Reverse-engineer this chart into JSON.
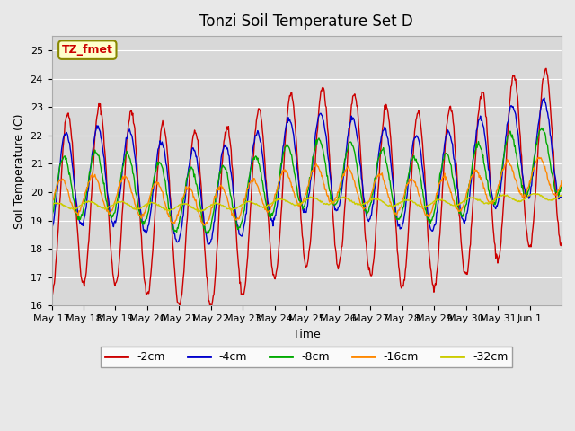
{
  "title": "Tonzi Soil Temperature Set D",
  "xlabel": "Time",
  "ylabel": "Soil Temperature (C)",
  "ylim": [
    16.0,
    25.5
  ],
  "yticks": [
    16.0,
    17.0,
    18.0,
    19.0,
    20.0,
    21.0,
    22.0,
    23.0,
    24.0,
    25.0
  ],
  "series_colors": [
    "#cc0000",
    "#0000cc",
    "#00aa00",
    "#ff8800",
    "#cccc00"
  ],
  "series_labels": [
    "-2cm",
    "-4cm",
    "-8cm",
    "-16cm",
    "-32cm"
  ],
  "legend_label": "TZ_fmet",
  "legend_box_color": "#ffffcc",
  "legend_box_edge": "#888800",
  "legend_text_color": "#cc0000",
  "bg_color": "#e8e8e8",
  "plot_bg_color": "#d8d8d8",
  "n_days": 16,
  "points_per_day": 48,
  "tick_dates": [
    "May 17",
    "May 18",
    "May 19",
    "May 20",
    "May 21",
    "May 22",
    "May 23",
    "May 24",
    "May 25",
    "May 26",
    "May 27",
    "May 28",
    "May 29",
    "May 30",
    "May 31",
    "Jun 1"
  ]
}
